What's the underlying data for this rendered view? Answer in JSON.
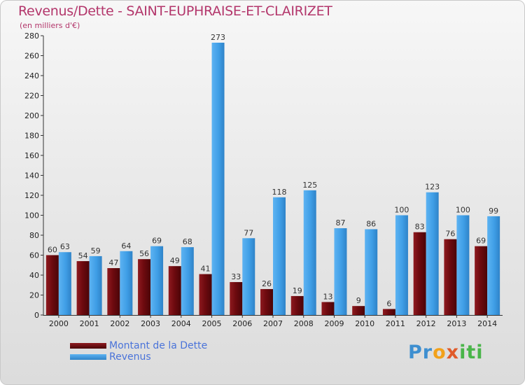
{
  "header": {
    "title": "Revenus/Dette - SAINT-EUPHRAISE-ET-CLAIRIZET",
    "subtitle": "(en milliers d'€)"
  },
  "logo": {
    "parts": [
      "Pr",
      "o",
      "x",
      "iti"
    ]
  },
  "colors": {
    "dette": "#7a0d12",
    "revenus": "#3f9ee6",
    "title": "#b3366b",
    "legend_text": "#4a73d9"
  },
  "chart_data": {
    "type": "bar",
    "categories": [
      "2000",
      "2001",
      "2002",
      "2003",
      "2004",
      "2005",
      "2006",
      "2007",
      "2008",
      "2009",
      "2010",
      "2011",
      "2012",
      "2013",
      "2014"
    ],
    "series": [
      {
        "name": "Montant de la Dette",
        "values": [
          60,
          54,
          47,
          56,
          49,
          41,
          33,
          26,
          19,
          13,
          9,
          6,
          83,
          76,
          69
        ]
      },
      {
        "name": "Revenus",
        "values": [
          63,
          59,
          64,
          69,
          68,
          273,
          77,
          118,
          125,
          87,
          86,
          100,
          123,
          100,
          99
        ]
      }
    ],
    "ylim": [
      0,
      280
    ],
    "yticks": [
      0,
      20,
      40,
      60,
      80,
      100,
      120,
      140,
      160,
      180,
      200,
      220,
      240,
      260,
      280
    ],
    "grid": false,
    "legend": "bottom-left"
  }
}
